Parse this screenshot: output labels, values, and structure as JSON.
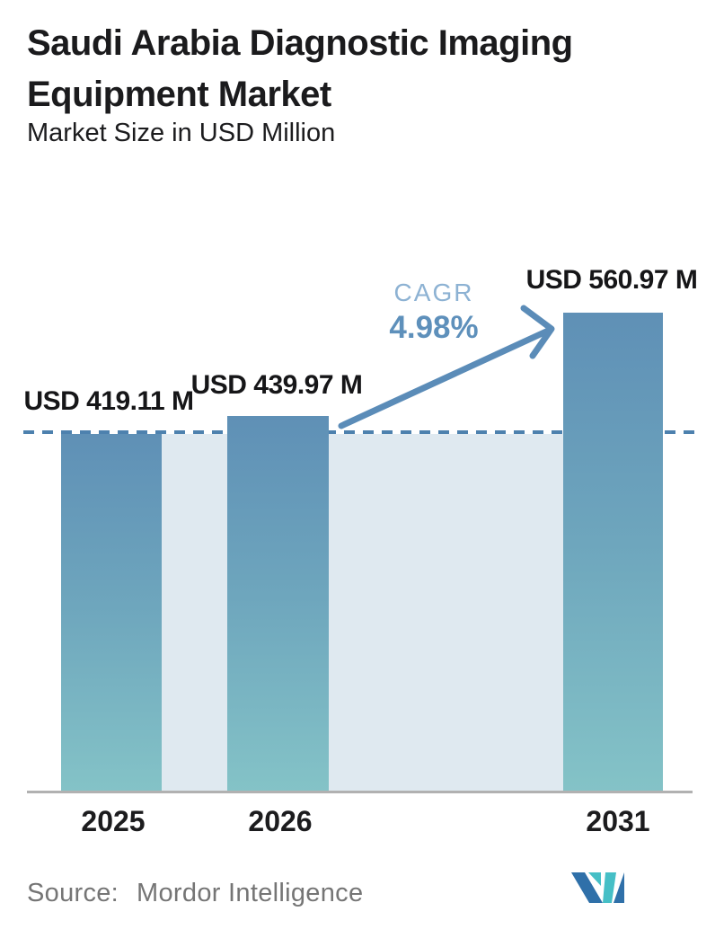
{
  "header": {
    "title_line1": "Saudi Arabia Diagnostic Imaging",
    "title_line2": "Equipment Market",
    "subtitle": "Market Size in USD Million"
  },
  "chart_data": {
    "type": "bar",
    "title": "Saudi Arabia Diagnostic Imaging Equipment Market",
    "subtitle": "Market Size in USD Million",
    "unit": "USD Million",
    "categories": [
      "2025",
      "2026",
      "2031"
    ],
    "values": [
      419.11,
      439.97,
      560.97
    ],
    "bar_labels": [
      "USD 419.11 M",
      "USD 439.97 M",
      "USD 560.97 M"
    ],
    "cagr": {
      "label": "CAGR",
      "value": "4.98%"
    },
    "annotations": {
      "dashed_reference_level": 419.11,
      "arrow": "from 2026 bar top toward 2031 bar top"
    },
    "ylim": [
      0,
      590
    ],
    "grid": false,
    "legend": false,
    "colors": {
      "bar_gradient_top": "#5f90b6",
      "bar_gradient_bottom": "#84c3c7",
      "area_fill": "#dfe9f0",
      "dashed_line": "#4d81ae",
      "arrow": "#5b8cb8",
      "cagr_label": "#8db2d3",
      "cagr_value": "#5e90bb",
      "baseline": "#b1b1b1",
      "logo_blue": "#2f70a9",
      "logo_teal": "#46bfc6"
    }
  },
  "footer": {
    "source_label": "Source:",
    "source_value": "Mordor Intelligence",
    "logo": "mordor-intelligence-logo"
  }
}
